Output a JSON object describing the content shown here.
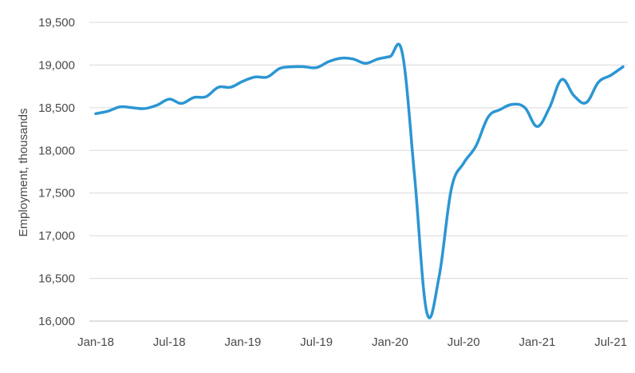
{
  "chart_data": {
    "type": "line",
    "title": "",
    "xlabel": "",
    "ylabel": "Employment, thousands",
    "ylim": [
      16000,
      19500
    ],
    "y_ticks": [
      16000,
      16500,
      17000,
      17500,
      18000,
      18500,
      19000,
      19500
    ],
    "y_tick_labels": [
      "16,000",
      "16,500",
      "17,000",
      "17,500",
      "18,000",
      "18,500",
      "19,000",
      "19,500"
    ],
    "x_tick_labels": [
      "Jan-18",
      "Jul-18",
      "Jan-19",
      "Jul-19",
      "Jan-20",
      "Jul-20",
      "Jan-21",
      "Jul-21"
    ],
    "x": [
      "Jan-18",
      "Feb-18",
      "Mar-18",
      "Apr-18",
      "May-18",
      "Jun-18",
      "Jul-18",
      "Aug-18",
      "Sep-18",
      "Oct-18",
      "Nov-18",
      "Dec-18",
      "Jan-19",
      "Feb-19",
      "Mar-19",
      "Apr-19",
      "May-19",
      "Jun-19",
      "Jul-19",
      "Aug-19",
      "Sep-19",
      "Oct-19",
      "Nov-19",
      "Dec-19",
      "Jan-20",
      "Feb-20",
      "Mar-20",
      "Apr-20",
      "May-20",
      "Jun-20",
      "Jul-20",
      "Aug-20",
      "Sep-20",
      "Oct-20",
      "Nov-20",
      "Dec-20",
      "Jan-21",
      "Feb-21",
      "Mar-21",
      "Apr-21",
      "May-21",
      "Jun-21",
      "Jul-21",
      "Aug-21"
    ],
    "grid": true,
    "series": [
      {
        "color": "#2b96d3",
        "values": [
          18430,
          18460,
          18510,
          18500,
          18490,
          18530,
          18600,
          18550,
          18620,
          18630,
          18740,
          18740,
          18810,
          18860,
          18860,
          18960,
          18980,
          18980,
          18970,
          19040,
          19080,
          19070,
          19020,
          19070,
          19100,
          19140,
          17700,
          16100,
          16520,
          17550,
          17850,
          18050,
          18390,
          18480,
          18540,
          18500,
          18280,
          18500,
          18830,
          18640,
          18560,
          18800,
          18880,
          18980
        ]
      }
    ]
  }
}
